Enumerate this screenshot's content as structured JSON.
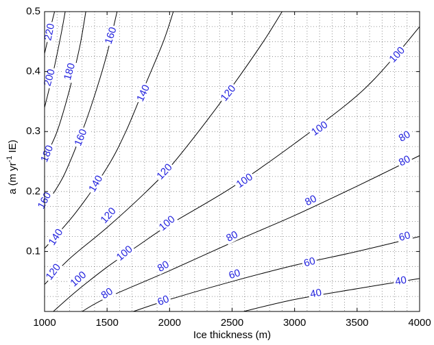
{
  "chart_data": {
    "type": "contour",
    "title": "",
    "xlabel": "Ice thickness (m)",
    "ylabel": {
      "base": "a (m yr",
      "sup": "-1",
      "tail": " IE)"
    },
    "xlim": [
      1000,
      4000
    ],
    "ylim": [
      0,
      0.5
    ],
    "xticks": [
      1000,
      1500,
      2000,
      2500,
      3000,
      3500,
      4000
    ],
    "xtick_labels": [
      "1000",
      "1500",
      "2000",
      "2500",
      "3000",
      "3500",
      "4000"
    ],
    "yticks": [
      0.1,
      0.2,
      0.3,
      0.4,
      0.5
    ],
    "ytick_labels": [
      "0.1",
      "0.2",
      "0.3",
      "0.4",
      "0.5"
    ],
    "grid": true,
    "contours": [
      {
        "level": 40,
        "points": [
          [
            2590,
            0
          ],
          [
            3000,
            0.02
          ],
          [
            3500,
            0.038
          ],
          [
            4000,
            0.055
          ]
        ]
      },
      {
        "level": 60,
        "points": [
          [
            1710,
            0
          ],
          [
            2000,
            0.02
          ],
          [
            2500,
            0.05
          ],
          [
            3000,
            0.077
          ],
          [
            3500,
            0.1
          ],
          [
            4000,
            0.125
          ]
        ]
      },
      {
        "level": 80,
        "points": [
          [
            1300,
            0
          ],
          [
            1500,
            0.023
          ],
          [
            2000,
            0.068
          ],
          [
            2500,
            0.115
          ],
          [
            3000,
            0.16
          ],
          [
            3500,
            0.209
          ],
          [
            4000,
            0.26
          ]
        ]
      },
      {
        "level": 100,
        "points": [
          [
            1070,
            0
          ],
          [
            1250,
            0.033
          ],
          [
            1500,
            0.074
          ],
          [
            1750,
            0.11
          ],
          [
            2000,
            0.145
          ],
          [
            2500,
            0.207
          ],
          [
            3000,
            0.28
          ],
          [
            3500,
            0.36
          ],
          [
            3800,
            0.425
          ],
          [
            4000,
            0.475
          ]
        ]
      },
      {
        "level": 120,
        "points": [
          [
            1000,
            0.045
          ],
          [
            1200,
            0.088
          ],
          [
            1500,
            0.14
          ],
          [
            1800,
            0.197
          ],
          [
            2000,
            0.24
          ],
          [
            2250,
            0.305
          ],
          [
            2500,
            0.375
          ],
          [
            2750,
            0.45
          ],
          [
            2900,
            0.5
          ]
        ]
      },
      {
        "level": 140,
        "points": [
          [
            1000,
            0.105
          ],
          [
            1250,
            0.165
          ],
          [
            1500,
            0.24
          ],
          [
            1650,
            0.3
          ],
          [
            1800,
            0.375
          ],
          [
            1950,
            0.45
          ],
          [
            2030,
            0.5
          ]
        ]
      },
      {
        "level": 160,
        "points": [
          [
            1000,
            0.175
          ],
          [
            1150,
            0.225
          ],
          [
            1300,
            0.3
          ],
          [
            1400,
            0.36
          ],
          [
            1500,
            0.43
          ],
          [
            1580,
            0.5
          ]
        ]
      },
      {
        "level": 180,
        "points": [
          [
            1000,
            0.255
          ],
          [
            1100,
            0.3
          ],
          [
            1200,
            0.37
          ],
          [
            1280,
            0.44
          ],
          [
            1330,
            0.5
          ]
        ]
      },
      {
        "level": 200,
        "points": [
          [
            1000,
            0.34
          ],
          [
            1070,
            0.4
          ],
          [
            1130,
            0.46
          ],
          [
            1165,
            0.5
          ]
        ]
      },
      {
        "level": 220,
        "points": [
          [
            1000,
            0.43
          ],
          [
            1050,
            0.475
          ],
          [
            1080,
            0.5
          ]
        ]
      }
    ],
    "labels": [
      {
        "text": "40",
        "x": 3170,
        "y": 0.03,
        "angle": -10
      },
      {
        "text": "40",
        "x": 3850,
        "y": 0.051,
        "angle": -10
      },
      {
        "text": "60",
        "x": 1950,
        "y": 0.018,
        "angle": -22
      },
      {
        "text": "60",
        "x": 2520,
        "y": 0.062,
        "angle": -18
      },
      {
        "text": "60",
        "x": 3120,
        "y": 0.082,
        "angle": -16
      },
      {
        "text": "60",
        "x": 3880,
        "y": 0.125,
        "angle": -16
      },
      {
        "text": "80",
        "x": 1500,
        "y": 0.03,
        "angle": -33
      },
      {
        "text": "80",
        "x": 1950,
        "y": 0.075,
        "angle": -31
      },
      {
        "text": "80",
        "x": 2500,
        "y": 0.125,
        "angle": -28
      },
      {
        "text": "80",
        "x": 3130,
        "y": 0.185,
        "angle": -27
      },
      {
        "text": "80",
        "x": 3880,
        "y": 0.251,
        "angle": -27
      },
      {
        "text": "80",
        "x": 3880,
        "y": 0.292,
        "angle": -31
      },
      {
        "text": "100",
        "x": 1270,
        "y": 0.054,
        "angle": -42
      },
      {
        "text": "100",
        "x": 1640,
        "y": 0.097,
        "angle": -40
      },
      {
        "text": "100",
        "x": 1980,
        "y": 0.147,
        "angle": -40
      },
      {
        "text": "100",
        "x": 2600,
        "y": 0.218,
        "angle": -35
      },
      {
        "text": "100",
        "x": 3200,
        "y": 0.305,
        "angle": -35
      },
      {
        "text": "100",
        "x": 3820,
        "y": 0.428,
        "angle": -47
      },
      {
        "text": "120",
        "x": 1070,
        "y": 0.066,
        "angle": -53
      },
      {
        "text": "120",
        "x": 1510,
        "y": 0.16,
        "angle": -48
      },
      {
        "text": "120",
        "x": 1960,
        "y": 0.233,
        "angle": -47
      },
      {
        "text": "120",
        "x": 2470,
        "y": 0.364,
        "angle": -51
      },
      {
        "text": "140",
        "x": 1090,
        "y": 0.124,
        "angle": -57
      },
      {
        "text": "140",
        "x": 1410,
        "y": 0.213,
        "angle": -60
      },
      {
        "text": "140",
        "x": 1790,
        "y": 0.364,
        "angle": -65
      },
      {
        "text": "160",
        "x": 1000,
        "y": 0.185,
        "angle": -62
      },
      {
        "text": "160",
        "x": 1290,
        "y": 0.29,
        "angle": -68
      },
      {
        "text": "160",
        "x": 1530,
        "y": 0.46,
        "angle": -72
      },
      {
        "text": "180",
        "x": 1020,
        "y": 0.263,
        "angle": -68
      },
      {
        "text": "180",
        "x": 1200,
        "y": 0.4,
        "angle": -74
      },
      {
        "text": "200",
        "x": 1040,
        "y": 0.39,
        "angle": -74
      },
      {
        "text": "220",
        "x": 1040,
        "y": 0.466,
        "angle": -78
      }
    ]
  }
}
